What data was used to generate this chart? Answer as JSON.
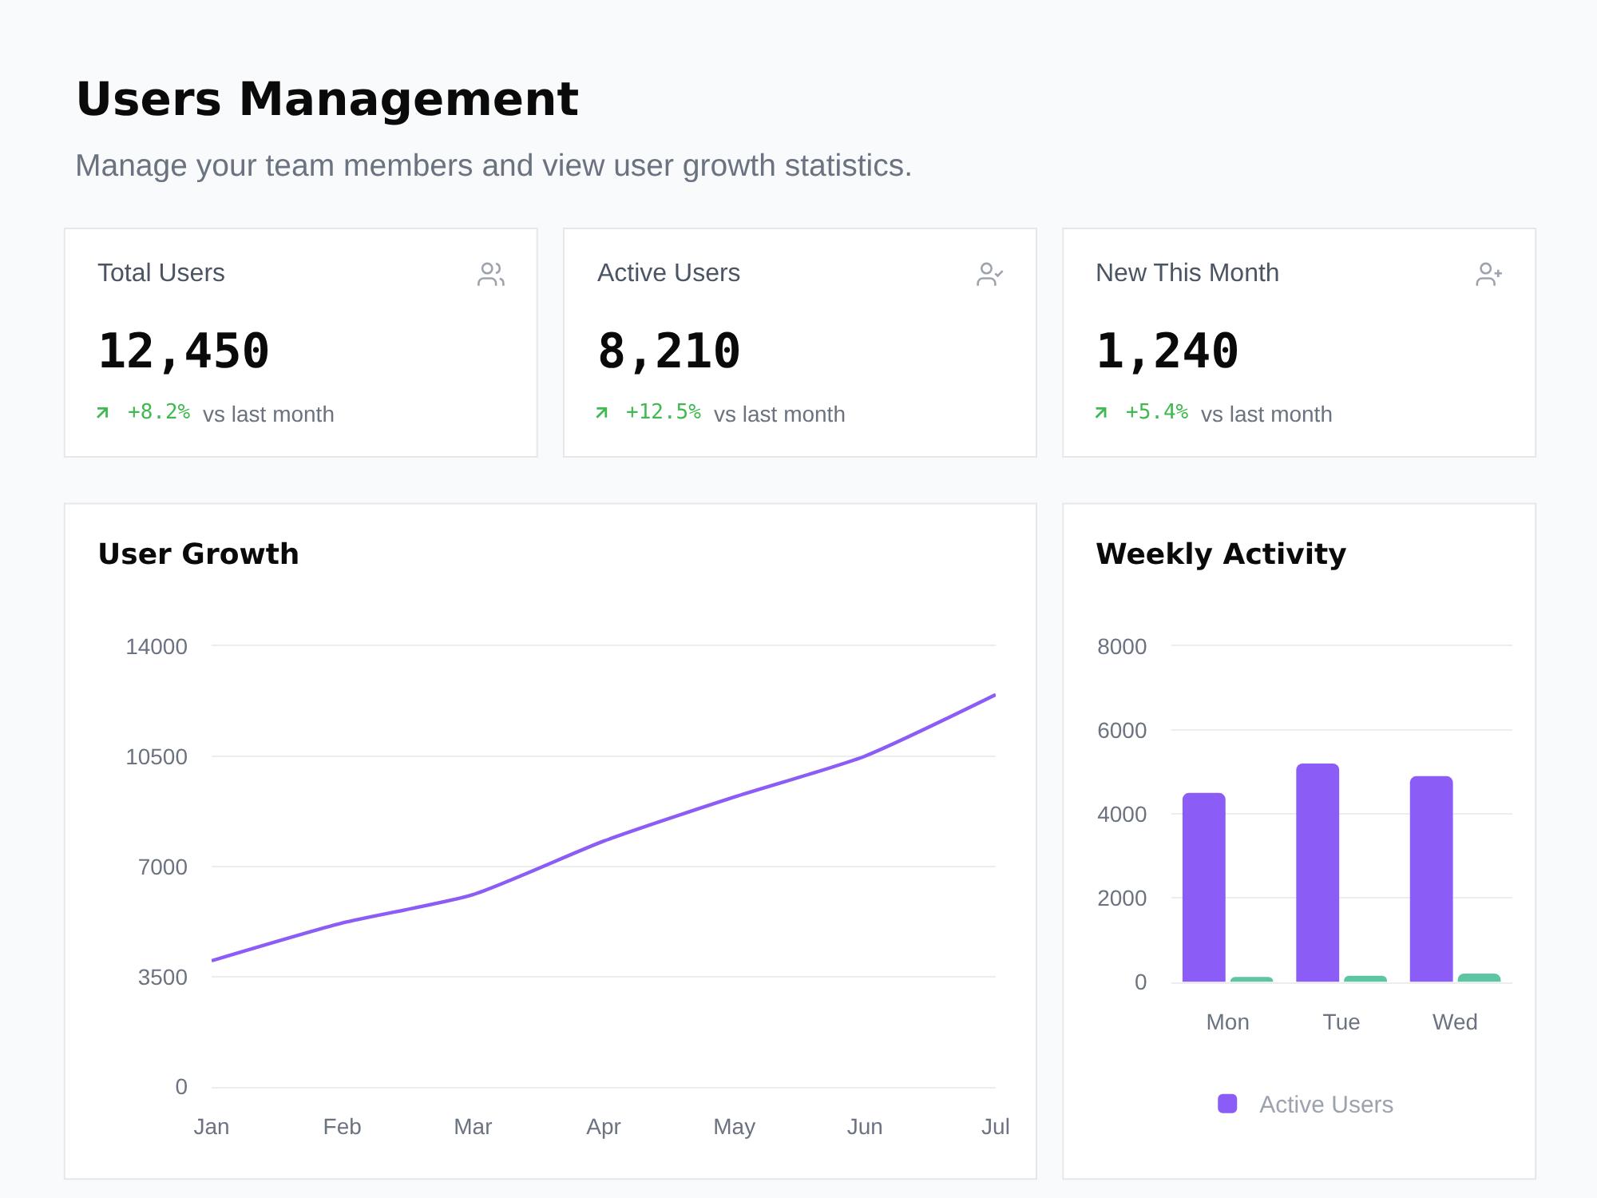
{
  "chart_data": [
    {
      "type": "other",
      "title": "Users Management",
      "subtitle": "Manage your team members and view user growth statistics."
    },
    {
      "type": "other",
      "title": "Total Users",
      "annotations": [
        "12,450",
        "+8.2%",
        "vs last month"
      ]
    },
    {
      "type": "other",
      "title": "Active Users",
      "annotations": [
        "8,210",
        "+12.5%",
        "vs last month"
      ]
    },
    {
      "type": "other",
      "title": "New This Month",
      "annotations": [
        "1,240",
        "+5.4%",
        "vs last month"
      ]
    },
    {
      "type": "line",
      "title": "User Growth",
      "categories": [
        "Jan",
        "Feb",
        "Mar",
        "Apr",
        "May",
        "Jun",
        "Jul"
      ],
      "values": [
        4000,
        5200,
        6100,
        7800,
        9200,
        10500,
        12450
      ],
      "color": "#8b5cf6",
      "ylim": [
        0,
        14000
      ],
      "yticks": [
        0,
        3500,
        7000,
        10500,
        14000
      ],
      "grid": "y"
    },
    {
      "type": "bar",
      "title": "Weekly Activity",
      "categories": [
        "Mon",
        "Tue",
        "Wed"
      ],
      "series": [
        {
          "name": "Active Users",
          "color": "#8b5cf6",
          "values": [
            4500,
            5200,
            4900
          ]
        },
        {
          "color": "#5ec5a4",
          "values": [
            120,
            150,
            200
          ]
        }
      ],
      "ylim": [
        0,
        8000
      ],
      "yticks": [
        0,
        2000,
        4000,
        6000,
        8000
      ],
      "grid": "y",
      "legend": "bottom"
    }
  ]
}
